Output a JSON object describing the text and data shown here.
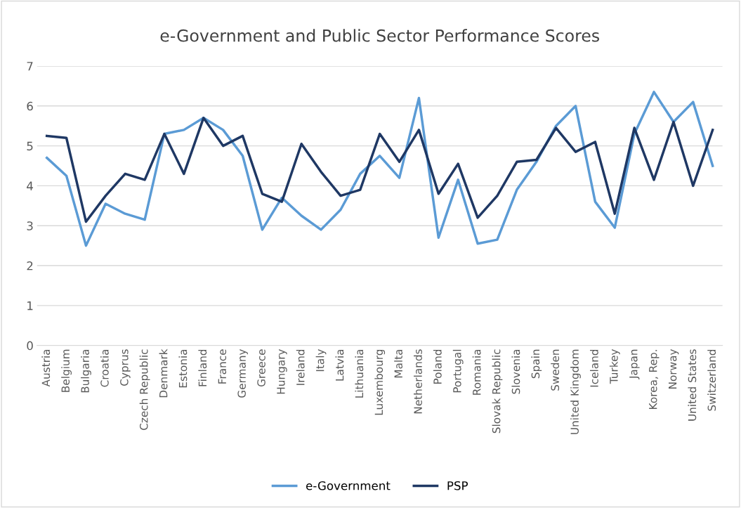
{
  "chart_data": {
    "type": "line",
    "title": "e-Government and Public Sector Performance Scores",
    "categories": [
      "Austria",
      "Belgium",
      "Bulgaria",
      "Croatia",
      "Cyprus",
      "Czech Republic",
      "Denmark",
      "Estonia",
      "Finland",
      "France",
      "Germany",
      "Greece",
      "Hungary",
      "Ireland",
      "Italy",
      "Latvia",
      "Lithuania",
      "Luxembourg",
      "Malta",
      "Netherlands",
      "Poland",
      "Portugal",
      "Romania",
      "Slovak Republic",
      "Slovenia",
      "Spain",
      "Sweden",
      "United Kingdom",
      "Iceland",
      "Turkey",
      "Japan",
      "Korea, Rep.",
      "Norway",
      "United States",
      "Switzerland"
    ],
    "series": [
      {
        "name": "e-Government",
        "color": "#5b9bd5",
        "values": [
          4.7,
          4.25,
          2.5,
          3.55,
          3.3,
          3.15,
          5.3,
          5.4,
          5.7,
          5.4,
          4.75,
          2.9,
          3.7,
          3.25,
          2.9,
          3.4,
          4.3,
          4.75,
          4.2,
          6.2,
          2.7,
          4.15,
          2.55,
          2.65,
          3.9,
          4.6,
          5.5,
          6.0,
          3.6,
          2.95,
          5.3,
          6.35,
          5.6,
          6.1,
          4.5
        ]
      },
      {
        "name": "PSP",
        "color": "#1f3864",
        "values": [
          5.25,
          5.2,
          3.1,
          3.75,
          4.3,
          4.15,
          5.3,
          4.3,
          5.7,
          5.0,
          5.25,
          3.8,
          3.6,
          5.05,
          4.35,
          3.75,
          3.9,
          5.3,
          4.6,
          5.4,
          3.8,
          4.55,
          3.2,
          3.75,
          4.6,
          4.65,
          5.45,
          4.85,
          5.1,
          3.3,
          5.45,
          4.15,
          5.6,
          4.0,
          5.4
        ]
      }
    ],
    "ylim": [
      0,
      7
    ],
    "yticks": [
      0,
      1,
      2,
      3,
      4,
      5,
      6,
      7
    ],
    "grid": "y",
    "legend": "bottom",
    "marker": "none",
    "line_style": "solid"
  }
}
